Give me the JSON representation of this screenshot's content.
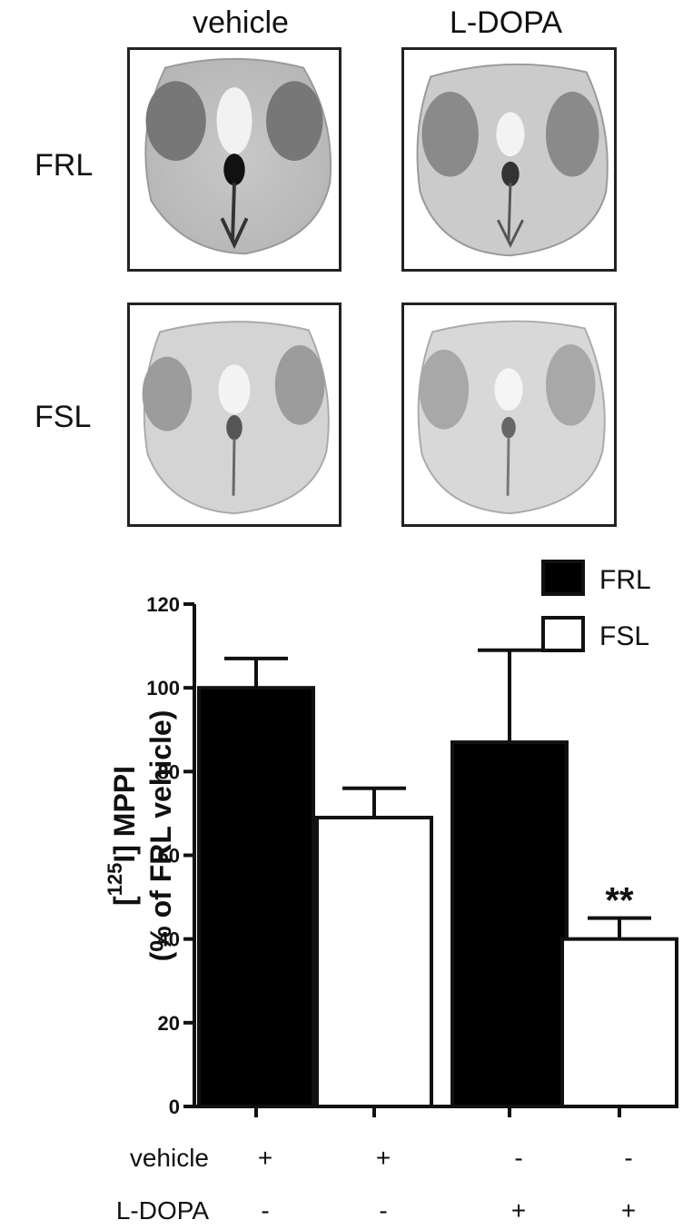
{
  "images": {
    "column_labels": [
      "vehicle",
      "L-DOPA"
    ],
    "row_labels": [
      "FRL",
      "FSL"
    ]
  },
  "chart_data": {
    "type": "bar",
    "ylabel_line1_prefix": "[",
    "ylabel_line1_sup": "125",
    "ylabel_line1_main": "I] MPPI",
    "ylabel_line2": "(% of FRL vehicle)",
    "ylim": [
      0,
      120
    ],
    "yticks": [
      "0",
      "20",
      "40",
      "60",
      "80",
      "100",
      "120"
    ],
    "bars": [
      {
        "group": "FRL",
        "value": 100,
        "error": 7,
        "fill": "#000000"
      },
      {
        "group": "FSL",
        "value": 69,
        "error": 7,
        "fill": "#ffffff"
      },
      {
        "group": "FRL",
        "value": 87,
        "error": 22,
        "fill": "#000000"
      },
      {
        "group": "FSL",
        "value": 40,
        "error": 5,
        "fill": "#ffffff"
      }
    ],
    "annotation": {
      "bar_index": 3,
      "text": "**"
    },
    "legend": [
      {
        "label": "FRL",
        "fill": "#000000"
      },
      {
        "label": "FSL",
        "fill": "#ffffff"
      }
    ],
    "legend_position": "top-right",
    "conditions": [
      {
        "label": "vehicle",
        "marks": [
          "+",
          "+",
          "-",
          "-"
        ]
      },
      {
        "label": "L-DOPA",
        "marks": [
          "-",
          "-",
          "+",
          "+"
        ]
      }
    ]
  }
}
